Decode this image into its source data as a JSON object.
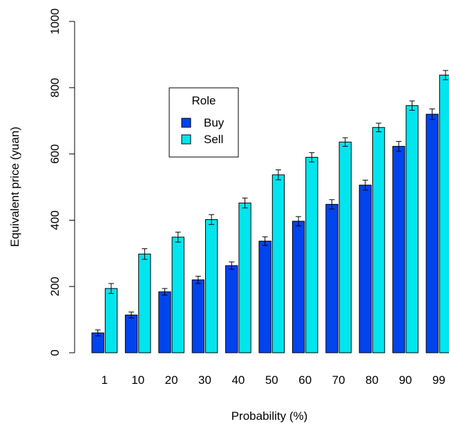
{
  "chart_data": {
    "type": "bar",
    "title": "",
    "xlabel": "Probability (%)",
    "ylabel": "Equivalent price (yuan)",
    "ylim": [
      0,
      1000
    ],
    "yticks": [
      0,
      200,
      400,
      600,
      800,
      1000
    ],
    "grid": false,
    "categories": [
      "1",
      "10",
      "20",
      "30",
      "40",
      "50",
      "60",
      "70",
      "80",
      "90",
      "99"
    ],
    "legend": {
      "title": "Role",
      "position": "upper-left (inside plot)"
    },
    "series": [
      {
        "name": "Buy",
        "color": "#0044ee",
        "values": [
          60,
          114,
          184,
          220,
          263,
          337,
          397,
          448,
          506,
          623,
          720
        ],
        "error": [
          9,
          9,
          10,
          11,
          11,
          13,
          14,
          14,
          15,
          15,
          16
        ]
      },
      {
        "name": "Sell",
        "color": "#00e5ee",
        "values": [
          194,
          298,
          349,
          402,
          452,
          537,
          590,
          636,
          680,
          746,
          838
        ],
        "error": [
          15,
          16,
          15,
          15,
          15,
          15,
          14,
          13,
          13,
          14,
          14
        ]
      }
    ]
  }
}
